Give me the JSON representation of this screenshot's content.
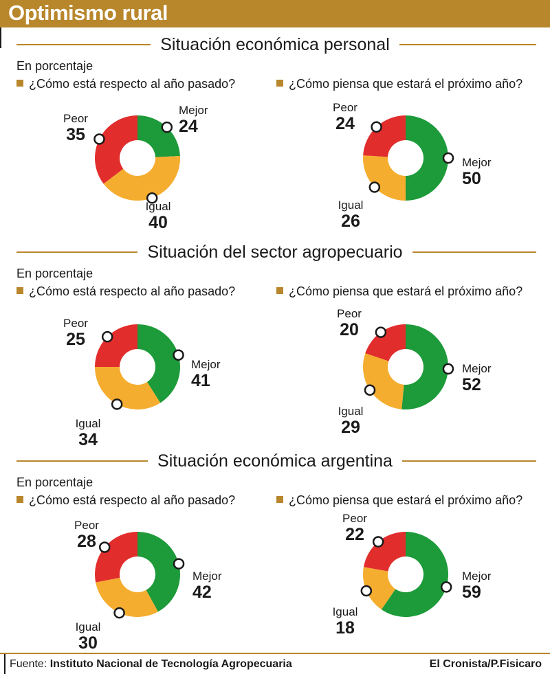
{
  "header": {
    "title": "Optimismo rural"
  },
  "colors": {
    "accent": "#b8862b",
    "peor": "#e22d2d",
    "igual": "#f5ad2f",
    "mejor": "#1d9a39"
  },
  "sections": [
    {
      "title": "Situación económica personal",
      "units": "En porcentaje",
      "q_left": "¿Cómo está respecto al año pasado?",
      "q_right": "¿Cómo piensa que estará el próximo año?"
    },
    {
      "title": "Situación del sector agropecuario",
      "units": "En porcentaje",
      "q_left": "¿Cómo está respecto al año pasado?",
      "q_right": "¿Cómo piensa que estará el próximo año?"
    },
    {
      "title": "Situación económica argentina",
      "units": "En porcentaje",
      "q_left": "¿Cómo está respecto al año pasado?",
      "q_right": "¿Cómo piensa que estará el próximo año?"
    }
  ],
  "chart_data": [
    {
      "type": "pie",
      "section": "Situación económica personal",
      "question": "¿Cómo está respecto al año pasado?",
      "categories": [
        "Mejor",
        "Igual",
        "Peor"
      ],
      "values": [
        24,
        40,
        35
      ]
    },
    {
      "type": "pie",
      "section": "Situación económica personal",
      "question": "¿Cómo piensa que estará el próximo año?",
      "categories": [
        "Mejor",
        "Igual",
        "Peor"
      ],
      "values": [
        50,
        26,
        24
      ]
    },
    {
      "type": "pie",
      "section": "Situación del sector agropecuario",
      "question": "¿Cómo está respecto al año pasado?",
      "categories": [
        "Mejor",
        "Igual",
        "Peor"
      ],
      "values": [
        41,
        34,
        25
      ]
    },
    {
      "type": "pie",
      "section": "Situación del sector agropecuario",
      "question": "¿Cómo piensa que estará el próximo año?",
      "categories": [
        "Mejor",
        "Igual",
        "Peor"
      ],
      "values": [
        52,
        29,
        20
      ]
    },
    {
      "type": "pie",
      "section": "Situación económica argentina",
      "question": "¿Cómo está respecto al año pasado?",
      "categories": [
        "Mejor",
        "Igual",
        "Peor"
      ],
      "values": [
        42,
        30,
        28
      ]
    },
    {
      "type": "pie",
      "section": "Situación económica argentina",
      "question": "¿Cómo piensa que estará el próximo año?",
      "categories": [
        "Mejor",
        "Igual",
        "Peor"
      ],
      "values": [
        59,
        18,
        22
      ]
    }
  ],
  "footer": {
    "source_label": "Fuente:",
    "source_name": "Instituto Nacional de Tecnología Agropecuaria",
    "credit": "El Cronista/P.Fisicaro"
  }
}
